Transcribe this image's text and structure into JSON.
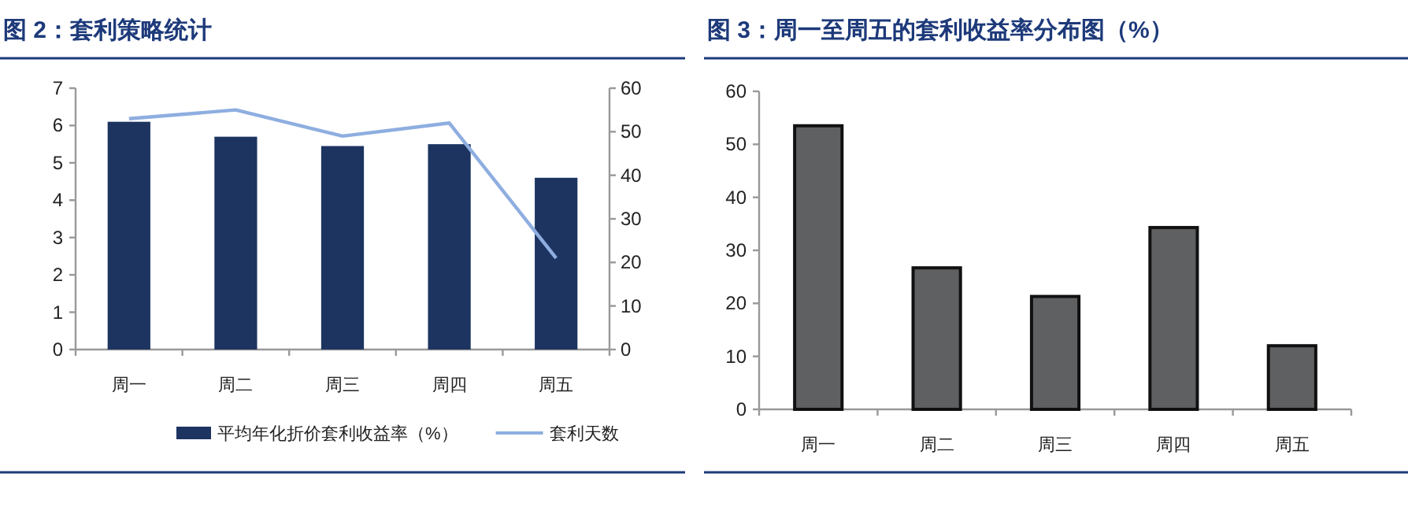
{
  "chart_data": [
    {
      "type": "bar",
      "title": "图 2：套利策略统计",
      "categories": [
        "周一",
        "周二",
        "周三",
        "周四",
        "周五"
      ],
      "series": [
        {
          "name": "平均年化折价套利收益率（%）",
          "color": "#1d3461",
          "values": [
            6.1,
            5.7,
            5.45,
            5.5,
            4.6
          ]
        },
        {
          "name": "套利天数",
          "type": "line",
          "axis": "y2",
          "color": "#8eaee0",
          "values": [
            53,
            55,
            49,
            52,
            21
          ]
        }
      ],
      "ylim": [
        0,
        7
      ],
      "yticks": [
        0,
        1,
        2,
        3,
        4,
        5,
        6,
        7
      ],
      "y2lim": [
        0,
        60
      ],
      "y2ticks": [
        0,
        10,
        20,
        30,
        40,
        50,
        60
      ],
      "legend": "bottom"
    },
    {
      "type": "bar",
      "title": "图 3：周一至周五的套利收益率分布图（%）",
      "categories": [
        "周一",
        "周二",
        "周三",
        "周四",
        "周五"
      ],
      "values": [
        53.5,
        26.7,
        21.3,
        34.3,
        12
      ],
      "color": "#5f6062",
      "ylim": [
        0,
        60
      ],
      "yticks": [
        0,
        10,
        20,
        30,
        40,
        50,
        60
      ]
    }
  ]
}
